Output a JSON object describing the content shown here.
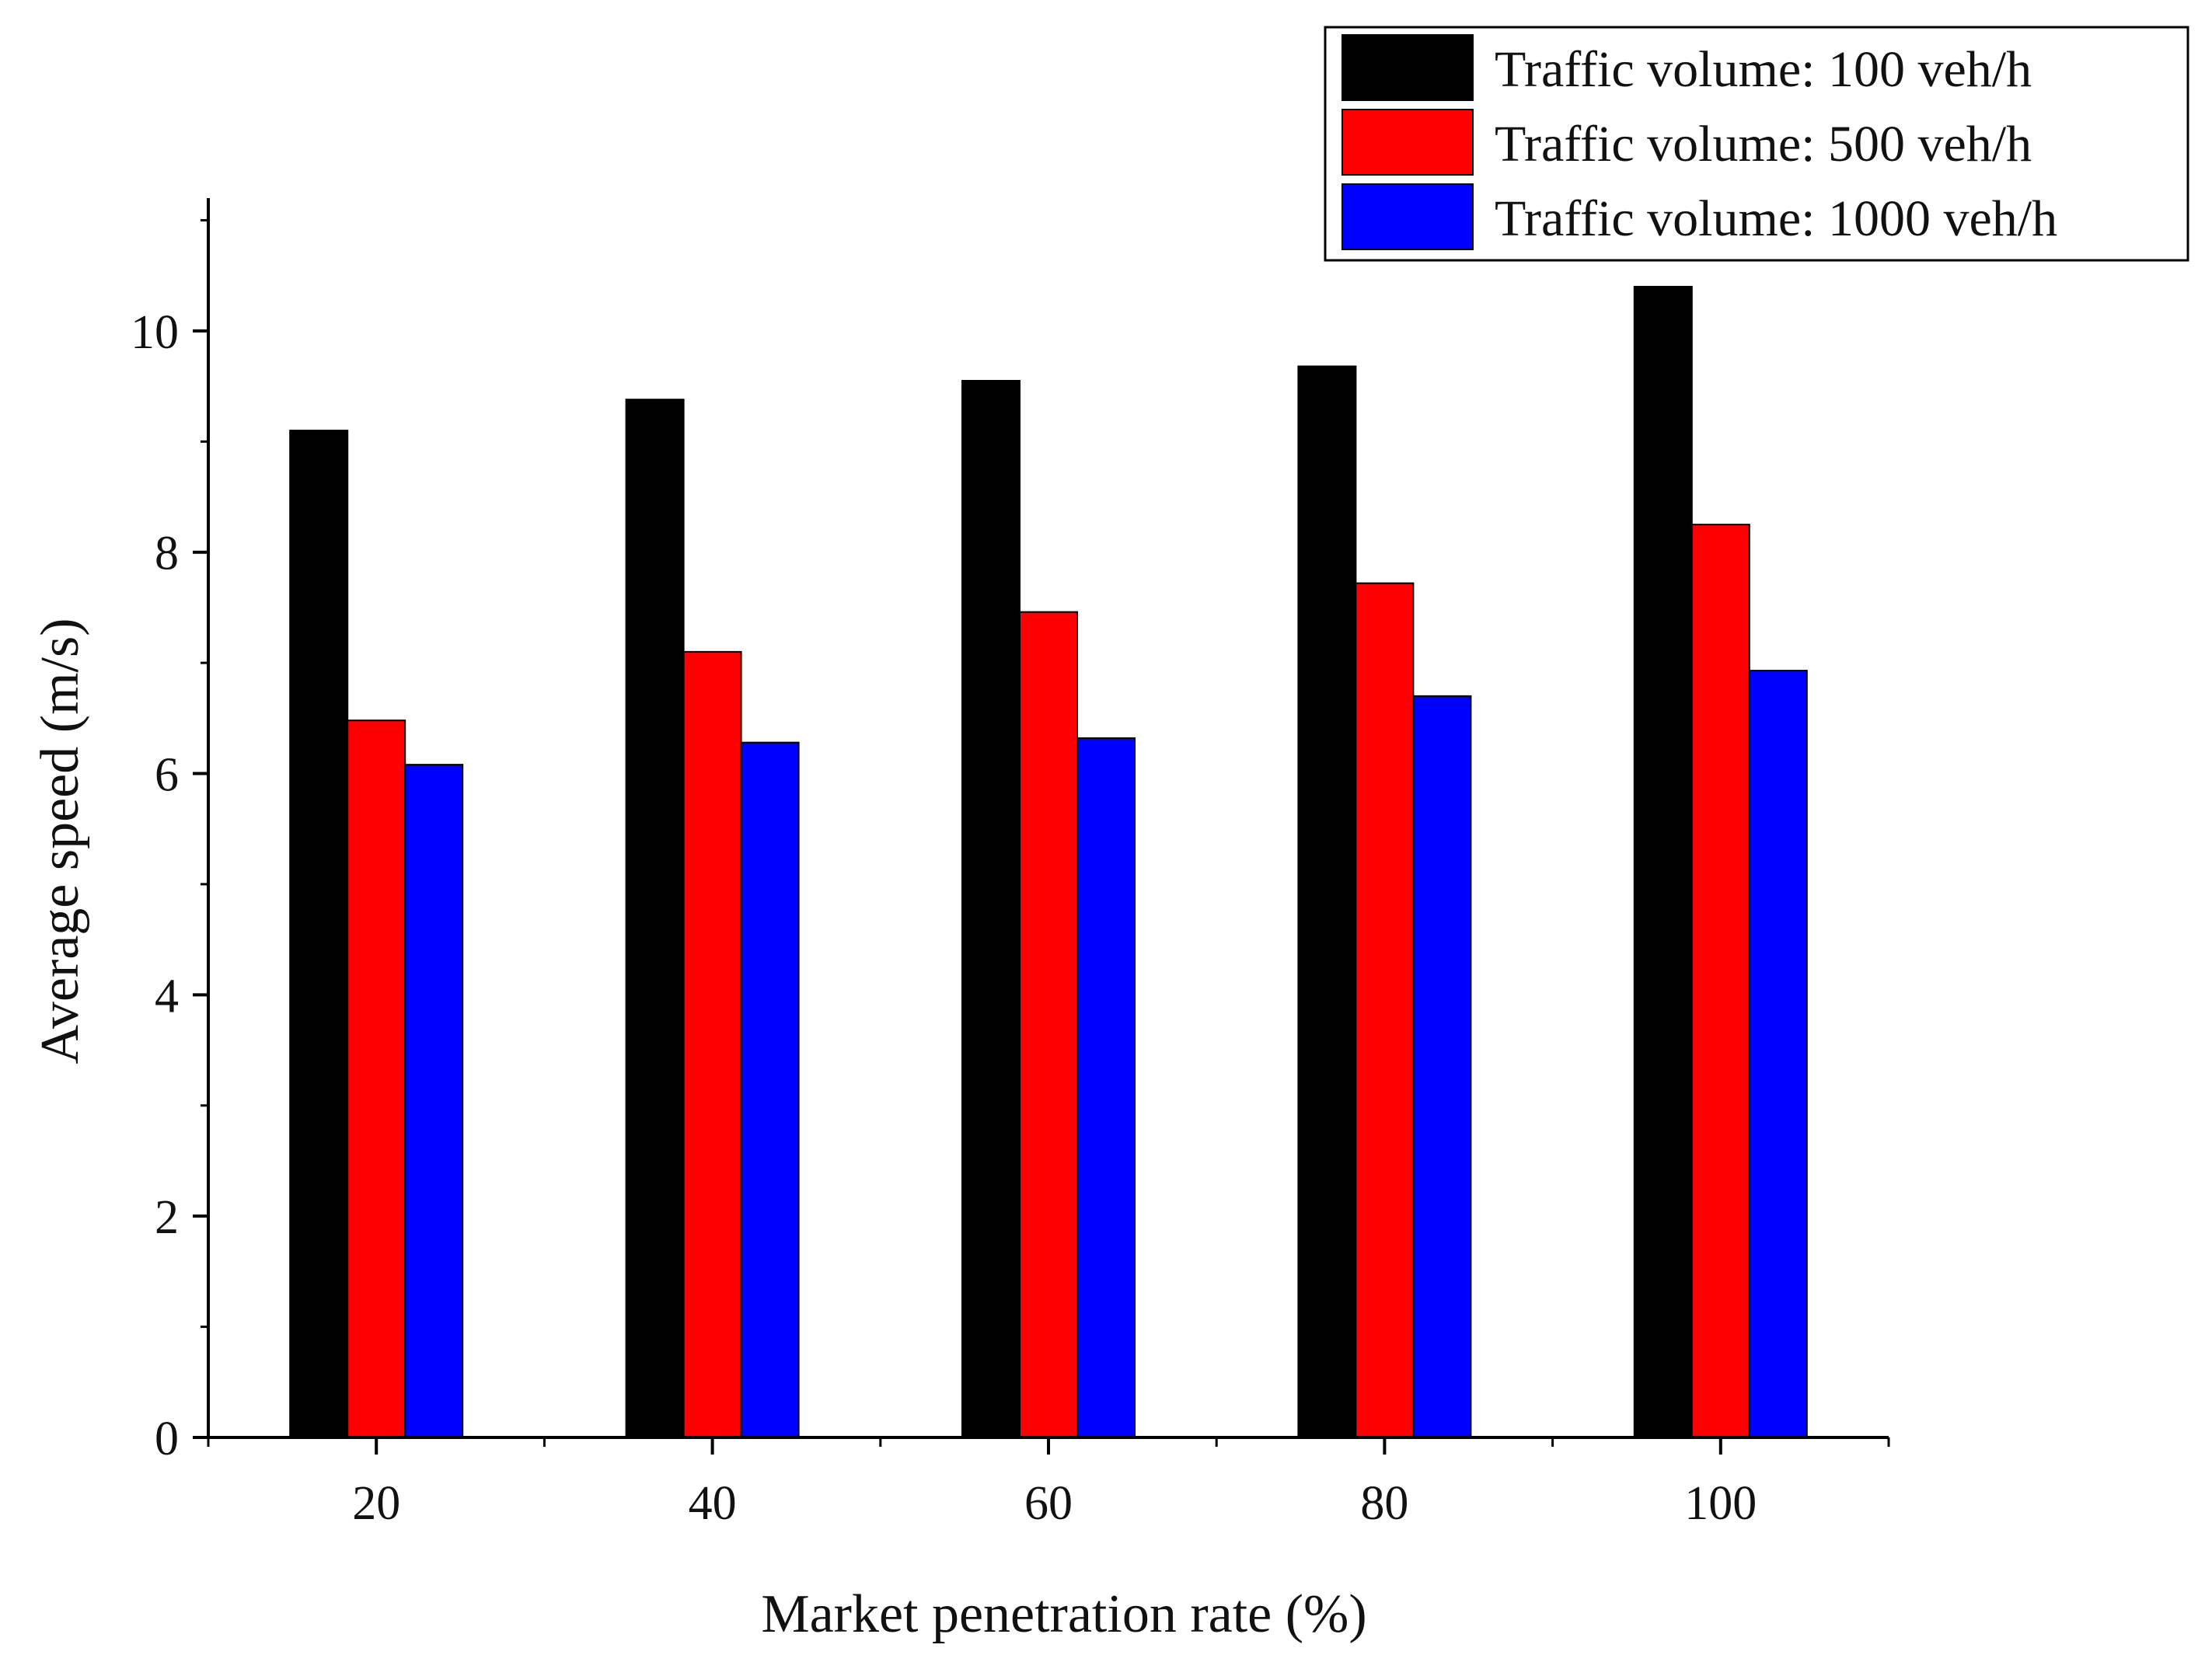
{
  "colors": {
    "axis": "#000000",
    "text": "#111111"
  },
  "chart_data": {
    "type": "bar",
    "categories": [
      "20",
      "40",
      "60",
      "80",
      "100"
    ],
    "series": [
      {
        "name": "Traffic volume: 100 veh/h",
        "color": "#000000",
        "values": [
          9.1,
          9.38,
          9.55,
          9.68,
          10.4
        ]
      },
      {
        "name": "Traffic volume: 500 veh/h",
        "color": "#ff0000",
        "values": [
          6.48,
          7.1,
          7.46,
          7.72,
          8.25
        ]
      },
      {
        "name": "Traffic volume: 1000 veh/h",
        "color": "#0000ff",
        "values": [
          6.08,
          6.28,
          6.32,
          6.7,
          6.93
        ]
      }
    ],
    "xlabel": "Market penetration rate (%)",
    "ylabel": "Average speed (m/s)",
    "ylim": [
      0,
      11.2
    ],
    "yticks": [
      0,
      2,
      4,
      6,
      8,
      10
    ],
    "yminor_step": 1,
    "grid": false,
    "legend": "top-right"
  }
}
